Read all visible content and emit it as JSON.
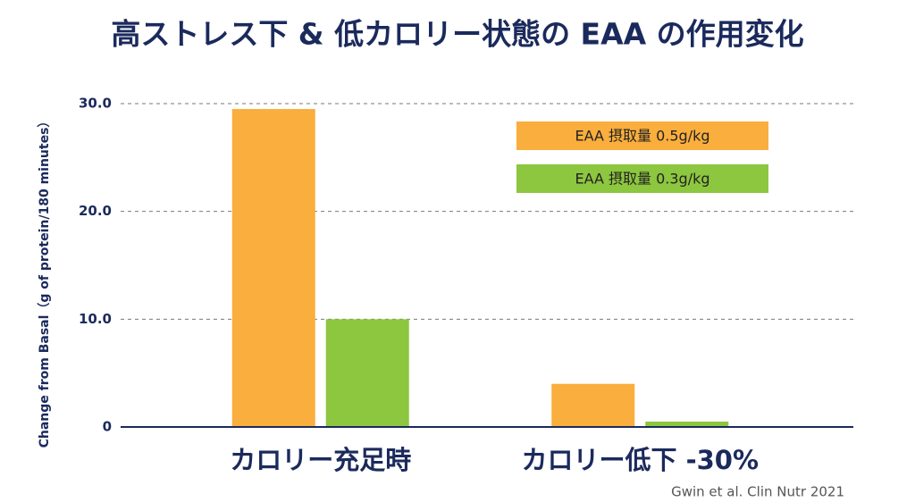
{
  "chart_data": {
    "type": "bar",
    "title": "高ストレス下 & 低カロリー状態の EAA の作用変化",
    "y_label": "Change from Basal（g of protein/180 minutes）",
    "categories": [
      "カロリー充足時",
      "カロリー低下 -30%"
    ],
    "series": [
      {
        "name": "EAA 摂取量 0.5g/kg",
        "color": "#f9ae3d",
        "values": [
          29.5,
          4.0
        ]
      },
      {
        "name": "EAA 摂取量 0.3g/kg",
        "color": "#8dc63f",
        "values": [
          10.0,
          0.5
        ]
      }
    ],
    "ylim": [
      0,
      30
    ],
    "yticks": [
      0,
      {
        "value": 10,
        "label": "10.0"
      },
      {
        "value": 20,
        "label": "20.0"
      },
      {
        "value": 30,
        "label": "30.0"
      }
    ],
    "grid": true,
    "legend": "upper right",
    "source": "Gwin et al. Clin Nutr 2021"
  }
}
